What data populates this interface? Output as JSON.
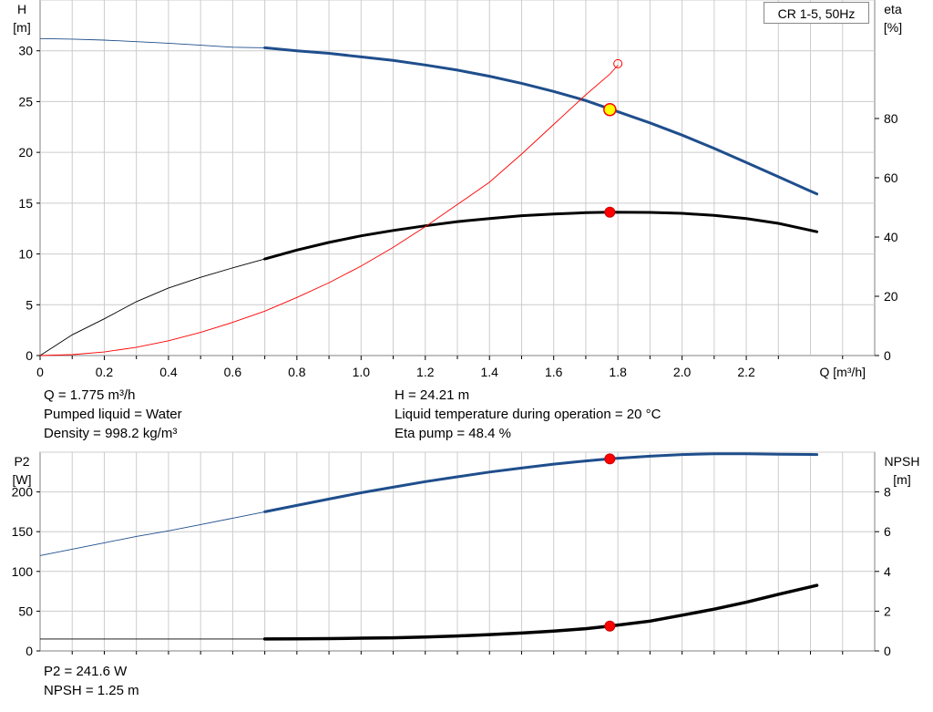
{
  "legend": "CR 1-5, 50Hz",
  "top_info": {
    "left": [
      "Q = 1.775 m³/h",
      "Pumped liquid = Water",
      "Density = 998.2 kg/m³"
    ],
    "right": [
      "H = 24.21 m",
      "Liquid temperature during operation = 20 °C",
      "Eta pump = 48.4 %"
    ]
  },
  "bottom_info": [
    "P2 = 241.6 W",
    "NPSH = 1.25 m"
  ],
  "colors": {
    "blue": "#1f4e8c",
    "black": "#000000",
    "red": "#ff0000",
    "grid": "#cccccc",
    "marker_fill": "#ffff00"
  },
  "chart_data": [
    {
      "type": "line",
      "title": "",
      "xlabel": "Q [m³/h]",
      "ylabel": "H\n[m]",
      "y2label": "eta\n[%]",
      "xlim": [
        0,
        2.6
      ],
      "ylim": [
        0,
        35
      ],
      "y2lim": [
        0,
        120
      ],
      "xticks": [
        "0",
        "0.2",
        "0.4",
        "0.6",
        "0.8",
        "1.0",
        "1.2",
        "1.4",
        "1.6",
        "1.8",
        "2.0",
        "2.2"
      ],
      "yticks": [
        "0",
        "5",
        "10",
        "15",
        "20",
        "25",
        "30"
      ],
      "y2ticks": [
        "0",
        "20",
        "40",
        "60",
        "80"
      ],
      "grid": true,
      "series": [
        {
          "axis": "left",
          "color": "#1f4e8c",
          "x": [
            0,
            0.1,
            0.2,
            0.3,
            0.4,
            0.5,
            0.6,
            0.7,
            0.8,
            0.9,
            1.0,
            1.1,
            1.2,
            1.3,
            1.4,
            1.5,
            1.6,
            1.7,
            1.8,
            1.9,
            2.0,
            2.1,
            2.2,
            2.3,
            2.42
          ],
          "values": [
            31.2,
            31.15,
            31.05,
            30.9,
            30.75,
            30.55,
            30.35,
            30.3,
            30.0,
            29.75,
            29.4,
            29.05,
            28.6,
            28.1,
            27.5,
            26.8,
            26.0,
            25.1,
            24.0,
            22.9,
            21.7,
            20.4,
            19.0,
            17.6,
            15.9
          ],
          "bold_from": 0.7
        },
        {
          "axis": "right",
          "color": "#000000",
          "x": [
            0,
            0.1,
            0.2,
            0.3,
            0.4,
            0.5,
            0.6,
            0.7,
            0.8,
            0.9,
            1.0,
            1.1,
            1.2,
            1.3,
            1.4,
            1.5,
            1.6,
            1.7,
            1.775,
            1.9,
            2.0,
            2.1,
            2.2,
            2.3,
            2.42
          ],
          "values": [
            0,
            7,
            12.4,
            18.2,
            22.8,
            26.4,
            29.6,
            32.6,
            35.6,
            38.2,
            40.4,
            42.2,
            43.8,
            45.2,
            46.2,
            47.2,
            47.8,
            48.2,
            48.4,
            48.3,
            48.0,
            47.3,
            46.2,
            44.6,
            41.8
          ],
          "bold_from": 0.7
        },
        {
          "axis": "right",
          "color": "#ff0000",
          "name": "",
          "x": [
            0,
            0.1,
            0.2,
            0.3,
            0.4,
            0.5,
            0.6,
            0.7,
            0.8,
            0.9,
            1.0,
            1.1,
            1.2,
            1.3,
            1.4,
            1.5,
            1.6,
            1.7,
            1.775,
            1.8
          ],
          "values": [
            0,
            0.3,
            1.2,
            2.8,
            5.0,
            7.8,
            11.2,
            15.0,
            19.6,
            24.6,
            30.2,
            36.5,
            43.5,
            51.0,
            58.5,
            68.0,
            78.0,
            88.0,
            95.0,
            98.0
          ]
        }
      ],
      "markers": [
        {
          "x": 1.775,
          "y": 24.21,
          "axis": "left",
          "style": "yellow"
        },
        {
          "x": 1.775,
          "y": 48.4,
          "axis": "right",
          "style": "red"
        },
        {
          "x": 1.8,
          "y": 98.5,
          "axis": "right",
          "style": "hollow"
        }
      ]
    },
    {
      "type": "line",
      "title": "",
      "xlabel": "",
      "ylabel": "P2\n[W]",
      "y2label": "NPSH\n[m]",
      "xlim": [
        0,
        2.6
      ],
      "ylim": [
        0,
        250
      ],
      "y2lim": [
        0,
        10
      ],
      "yticks": [
        "0",
        "50",
        "100",
        "150",
        "200"
      ],
      "y2ticks": [
        "0",
        "2",
        "4",
        "6",
        "8"
      ],
      "grid": true,
      "series": [
        {
          "axis": "left",
          "color": "#1f4e8c",
          "x": [
            0,
            0.1,
            0.2,
            0.3,
            0.4,
            0.5,
            0.6,
            0.7,
            0.8,
            0.9,
            1.0,
            1.1,
            1.2,
            1.3,
            1.4,
            1.5,
            1.6,
            1.7,
            1.775,
            1.9,
            2.0,
            2.1,
            2.2,
            2.3,
            2.42
          ],
          "values": [
            120,
            128,
            136,
            144,
            151,
            159,
            167,
            175,
            183,
            191,
            199,
            206,
            213,
            219,
            225,
            230,
            235,
            239,
            241.6,
            245,
            247,
            248,
            248,
            247.5,
            247
          ],
          "bold_from": 0.7
        },
        {
          "axis": "right",
          "color": "#000000",
          "x": [
            0,
            0.1,
            0.2,
            0.3,
            0.4,
            0.5,
            0.6,
            0.7,
            0.8,
            0.9,
            1.0,
            1.1,
            1.2,
            1.3,
            1.4,
            1.5,
            1.6,
            1.7,
            1.775,
            1.9,
            2.0,
            2.1,
            2.2,
            2.3,
            2.42
          ],
          "values": [
            0.6,
            0.6,
            0.6,
            0.6,
            0.6,
            0.6,
            0.6,
            0.6,
            0.61,
            0.62,
            0.64,
            0.66,
            0.7,
            0.75,
            0.82,
            0.9,
            1.0,
            1.12,
            1.25,
            1.5,
            1.8,
            2.1,
            2.45,
            2.85,
            3.3
          ],
          "bold_from": 0.7,
          "bold_width": 3.5
        }
      ],
      "markers": [
        {
          "x": 1.775,
          "y": 241.6,
          "axis": "left",
          "style": "red"
        },
        {
          "x": 1.775,
          "y": 1.25,
          "axis": "right",
          "style": "red"
        }
      ]
    }
  ]
}
